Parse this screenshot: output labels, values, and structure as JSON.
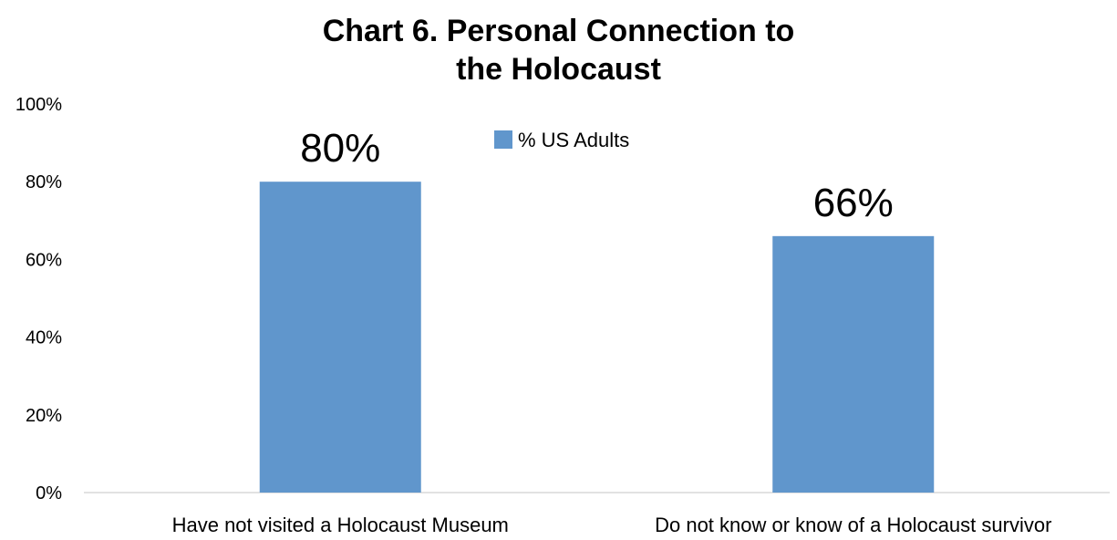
{
  "chart_data": {
    "type": "bar",
    "title": "Chart 6. Personal Connection to the Holocaust",
    "title_lines": [
      "Chart 6. Personal Connection to",
      "the Holocaust"
    ],
    "categories": [
      "Have not visited a Holocaust Museum",
      "Do not know or know of a Holocaust survivor"
    ],
    "series": [
      {
        "name": "% US Adults",
        "values": [
          80,
          66
        ],
        "color": "#6096CC"
      }
    ],
    "data_labels": [
      "80%",
      "66%"
    ],
    "ylim": [
      0,
      100
    ],
    "y_ticks": [
      0,
      20,
      40,
      60,
      80,
      100
    ],
    "y_tick_labels": [
      "0%",
      "20%",
      "40%",
      "60%",
      "80%",
      "100%"
    ],
    "xlabel": "",
    "ylabel": "",
    "grid": false,
    "legend_position": "top"
  }
}
